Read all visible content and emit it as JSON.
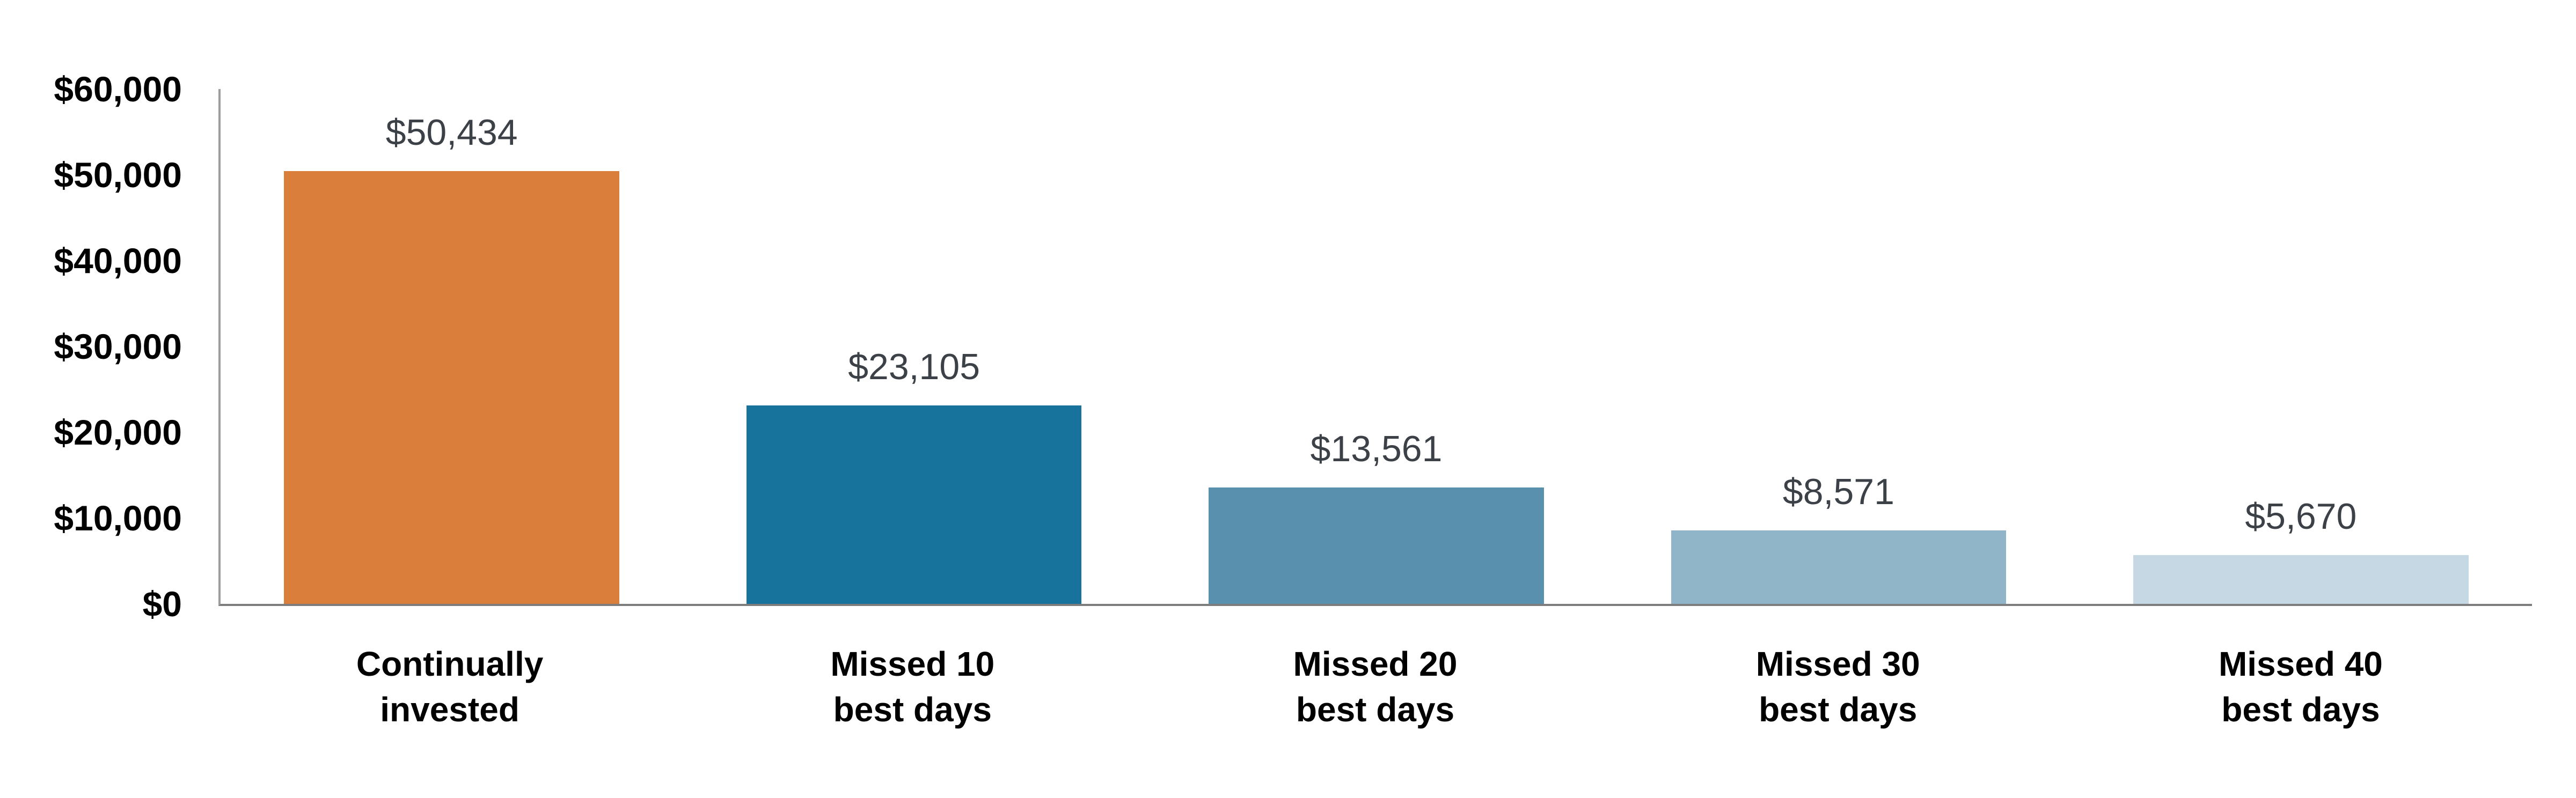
{
  "chart_data": {
    "type": "bar",
    "categories": [
      "Continually\ninvested",
      "Missed 10\nbest days",
      "Missed 20\nbest days",
      "Missed 30\nbest days",
      "Missed 40\nbest days"
    ],
    "values": [
      50434,
      23105,
      13561,
      8571,
      5670
    ],
    "value_labels": [
      "$50,434",
      "$23,105",
      "$13,561",
      "$8,571",
      "$5,670"
    ],
    "y_ticks": [
      {
        "value": 0,
        "label": "$0"
      },
      {
        "value": 10000,
        "label": "$10,000"
      },
      {
        "value": 20000,
        "label": "$20,000"
      },
      {
        "value": 30000,
        "label": "$30,000"
      },
      {
        "value": 40000,
        "label": "$40,000"
      },
      {
        "value": 50000,
        "label": "$50,000"
      },
      {
        "value": 60000,
        "label": "$60,000"
      }
    ],
    "ylim": [
      0,
      60000
    ],
    "xlabel": "",
    "ylabel": "",
    "grid": false,
    "legend": "none",
    "colors": {
      "bars": [
        "#d97e3b",
        "#17739b",
        "#5890ad",
        "#90b4c8",
        "#c5d8e4"
      ],
      "value_label_text": "#3c4148",
      "tick_label_text": "#000000",
      "axis_line_left": "#9d9d9d",
      "axis_line_bottom": "#7d7d7d",
      "background": "#ffffff"
    }
  }
}
